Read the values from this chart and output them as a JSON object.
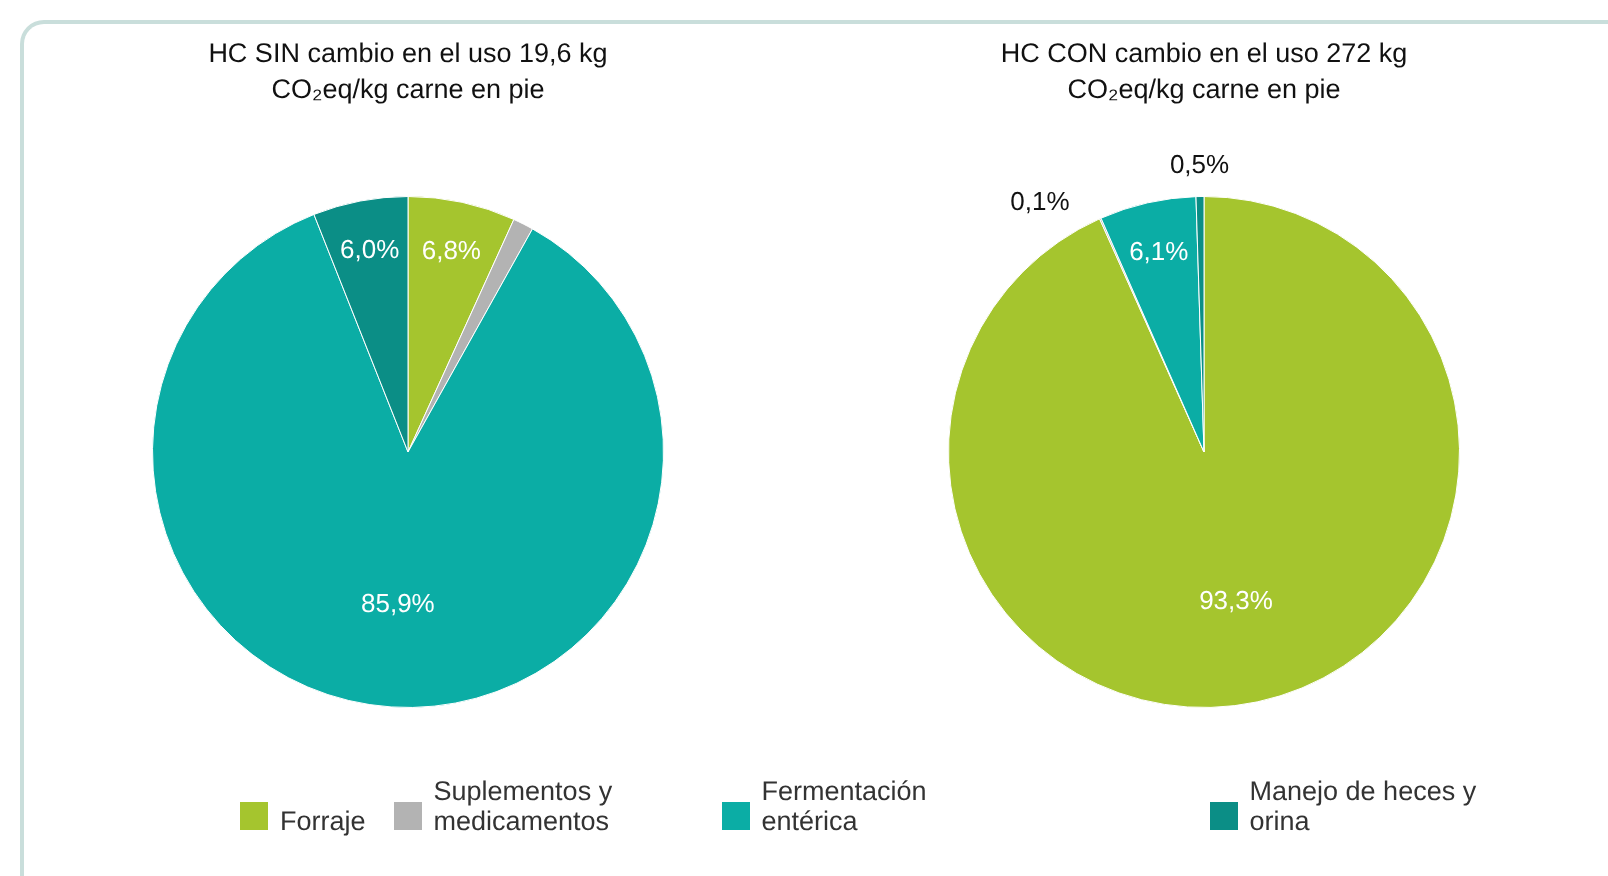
{
  "chart_data": [
    {
      "type": "pie",
      "title": "HC SIN cambio en el uso 19,6 kg CO₂eq/kg carne en pie",
      "categories": [
        "Forraje",
        "Suplementos y medicamentos",
        "Fermentación entérica",
        "Manejo de heces y orina"
      ],
      "values": [
        6.8,
        1.3,
        85.9,
        6.0
      ],
      "colors": [
        "#a5c52e",
        "#b3b3b3",
        "#0bada5",
        "#0b8e86"
      ],
      "value_labels": [
        "6,8%",
        null,
        "85,9%",
        "6,0%"
      ],
      "legend": "bottom"
    },
    {
      "type": "pie",
      "title": "HC CON cambio en el uso 272 kg CO₂eq/kg carne en pie",
      "categories": [
        null,
        null,
        null,
        null
      ],
      "values": [
        93.3,
        0.1,
        6.1,
        0.5
      ],
      "colors": [
        "#a5c52e",
        "#b3b3b3",
        "#0bada5",
        "#0b8e86"
      ],
      "value_labels": [
        "93,3%",
        "0,1%",
        "6,1%",
        "0,5%"
      ]
    }
  ]
}
